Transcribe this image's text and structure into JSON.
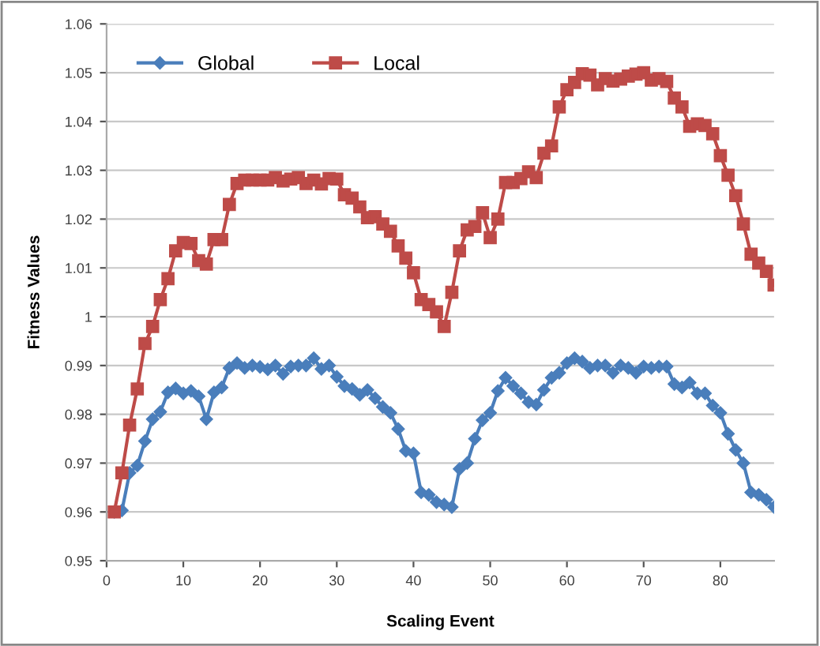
{
  "chart_data": {
    "type": "line",
    "xlabel": "Scaling Event",
    "ylabel": "Fitness Values",
    "x": [
      1,
      2,
      3,
      4,
      5,
      6,
      7,
      8,
      9,
      10,
      11,
      12,
      13,
      14,
      15,
      16,
      17,
      18,
      19,
      20,
      21,
      22,
      23,
      24,
      25,
      26,
      27,
      28,
      29,
      30,
      31,
      32,
      33,
      34,
      35,
      36,
      37,
      38,
      39,
      40,
      41,
      42,
      43,
      44,
      45,
      46,
      47,
      48,
      49,
      50,
      51,
      52,
      53,
      54,
      55,
      56,
      57,
      58,
      59,
      60,
      61,
      62,
      63,
      64,
      65,
      66,
      67,
      68,
      69,
      70,
      71,
      72,
      73,
      74,
      75,
      76,
      77,
      78,
      79,
      80,
      81,
      82,
      83,
      84,
      85,
      86,
      87
    ],
    "series": [
      {
        "name": "Global",
        "color": "#4a7ebb",
        "marker": "diamond",
        "values": [
          0.96,
          0.9603,
          0.968,
          0.9695,
          0.9745,
          0.979,
          0.9805,
          0.9845,
          0.9853,
          0.9843,
          0.9848,
          0.9837,
          0.979,
          0.9845,
          0.9855,
          0.9895,
          0.9905,
          0.9895,
          0.99,
          0.9897,
          0.9892,
          0.99,
          0.9883,
          0.9898,
          0.99,
          0.99,
          0.9915,
          0.9893,
          0.99,
          0.9877,
          0.9858,
          0.9852,
          0.984,
          0.985,
          0.9833,
          0.9815,
          0.9803,
          0.977,
          0.9725,
          0.972,
          0.964,
          0.9635,
          0.962,
          0.9615,
          0.961,
          0.9688,
          0.97,
          0.975,
          0.9788,
          0.9803,
          0.9848,
          0.9875,
          0.9858,
          0.9843,
          0.9825,
          0.982,
          0.985,
          0.9875,
          0.9885,
          0.9905,
          0.9915,
          0.9908,
          0.9895,
          0.99,
          0.99,
          0.9885,
          0.99,
          0.9895,
          0.9885,
          0.9898,
          0.9895,
          0.9898,
          0.9898,
          0.9862,
          0.9855,
          0.9865,
          0.9843,
          0.9843,
          0.9818,
          0.9803,
          0.976,
          0.9727,
          0.97,
          0.964,
          0.9635,
          0.9625,
          0.961
        ]
      },
      {
        "name": "Local",
        "color": "#be4b48",
        "marker": "square",
        "values": [
          0.96,
          0.968,
          0.9778,
          0.9852,
          0.9945,
          0.998,
          1.0035,
          1.0078,
          1.0135,
          1.0152,
          1.015,
          1.0115,
          1.0108,
          1.0158,
          1.0158,
          1.023,
          1.0273,
          1.028,
          1.028,
          1.028,
          1.028,
          1.0285,
          1.0278,
          1.0282,
          1.0285,
          1.0273,
          1.028,
          1.0272,
          1.0283,
          1.0282,
          1.025,
          1.0243,
          1.0225,
          1.0203,
          1.0205,
          1.019,
          1.0175,
          1.0145,
          1.012,
          1.009,
          1.0035,
          1.0025,
          1.001,
          0.998,
          1.005,
          1.0135,
          1.0178,
          1.0185,
          1.0213,
          1.0162,
          1.02,
          1.0275,
          1.0275,
          1.0283,
          1.0297,
          1.0285,
          1.0335,
          1.035,
          1.043,
          1.0465,
          1.048,
          1.0498,
          1.0495,
          1.0475,
          1.0488,
          1.0483,
          1.0487,
          1.0493,
          1.0497,
          1.05,
          1.0485,
          1.0488,
          1.0482,
          1.0448,
          1.043,
          1.039,
          1.0395,
          1.0392,
          1.0375,
          1.033,
          1.029,
          1.0248,
          1.019,
          1.0128,
          1.011,
          1.0093,
          1.0065
        ]
      }
    ],
    "xlim": [
      0,
      87
    ],
    "xticks": [
      0,
      10,
      20,
      30,
      40,
      50,
      60,
      70,
      80
    ],
    "ylim": [
      0.95,
      1.06
    ],
    "yticks": [
      0.95,
      0.96,
      0.97,
      0.98,
      0.99,
      1,
      1.01,
      1.02,
      1.03,
      1.04,
      1.05,
      1.06
    ],
    "grid": "y",
    "legend": "top left",
    "line_style": "solid"
  }
}
